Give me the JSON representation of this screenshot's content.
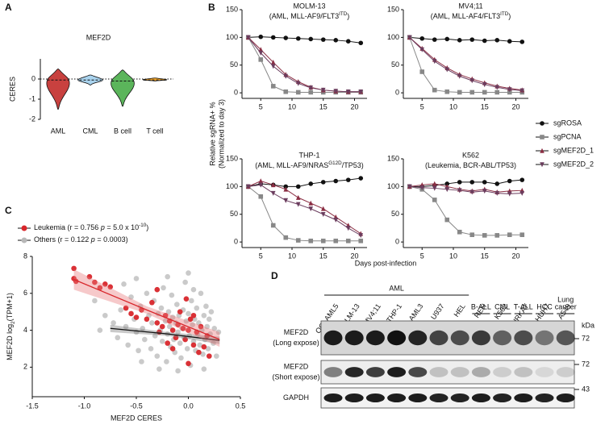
{
  "chart_data": [
    {
      "type": "violin",
      "panel": "A",
      "title": "MEF2D",
      "ylabel": "CERES",
      "categories": [
        "AML",
        "CML",
        "B cell",
        "T cell"
      ],
      "colors": [
        "#c8413f",
        "#a9d3ee",
        "#5bb55b",
        "#f4a62a"
      ],
      "min": [
        -1.5,
        -0.3,
        -1.35,
        -0.1
      ],
      "max": [
        0.5,
        0.2,
        0.45,
        0.05
      ],
      "median": [
        -0.05,
        -0.05,
        -0.1,
        -0.05
      ],
      "reference_line": 0,
      "ylim": [
        -2,
        1
      ],
      "yticks": [
        0,
        -1,
        -2
      ]
    },
    {
      "type": "line",
      "panel": "B",
      "title": "MOLM-13",
      "subtitle": [
        {
          "text": "(AML, MLL-AF9/FLT3"
        },
        {
          "sup": "ITD"
        },
        {
          "text": ")"
        }
      ],
      "ylabel": [
        "Relative sgRNA+ %",
        "(Normalized to day 3)"
      ],
      "xlabel": "Days post-infection",
      "x": [
        3,
        5,
        7,
        9,
        11,
        13,
        15,
        17,
        19,
        21
      ],
      "xlim": [
        2,
        22
      ],
      "xticks": [
        5,
        10,
        15,
        20
      ],
      "ylim": [
        -10,
        150
      ],
      "yticks": [
        0,
        50,
        100,
        150
      ],
      "series": [
        {
          "name": "sgROSA",
          "color": "#111111",
          "marker": "circle",
          "values": [
            100,
            101,
            100,
            99,
            98,
            97,
            96,
            95,
            93,
            90
          ]
        },
        {
          "name": "sgPCNA",
          "color": "#888888",
          "marker": "square",
          "values": [
            100,
            60,
            12,
            2,
            1,
            1,
            1,
            1,
            1,
            1
          ]
        },
        {
          "name": "sgMEF2D_1",
          "color": "#8b2e43",
          "marker": "triangle",
          "values": [
            100,
            78,
            55,
            33,
            20,
            10,
            5,
            3,
            2,
            2
          ]
        },
        {
          "name": "sgMEF2D_2",
          "color": "#6b3d5e",
          "marker": "triangle-down",
          "values": [
            100,
            72,
            48,
            30,
            17,
            9,
            5,
            3,
            2,
            2
          ]
        }
      ]
    },
    {
      "type": "line",
      "title": "MV4;11",
      "subtitle": [
        {
          "text": "(AML, MLL-AF4/FLT3"
        },
        {
          "sup": "ITD"
        },
        {
          "text": ")"
        }
      ],
      "x": [
        3,
        5,
        7,
        9,
        11,
        13,
        15,
        17,
        19,
        21
      ],
      "xlim": [
        2,
        22
      ],
      "xticks": [
        5,
        10,
        15,
        20
      ],
      "ylim": [
        -10,
        150
      ],
      "yticks": [
        0,
        50,
        100,
        150
      ],
      "series": [
        {
          "name": "sgROSA",
          "color": "#111111",
          "marker": "circle",
          "values": [
            100,
            98,
            96,
            97,
            95,
            96,
            94,
            95,
            93,
            92
          ]
        },
        {
          "name": "sgPCNA",
          "color": "#888888",
          "marker": "square",
          "values": [
            100,
            38,
            5,
            2,
            1,
            1,
            1,
            1,
            1,
            1
          ]
        },
        {
          "name": "sgMEF2D_1",
          "color": "#8b2e43",
          "marker": "triangle",
          "values": [
            100,
            80,
            60,
            45,
            33,
            25,
            18,
            12,
            8,
            5
          ]
        },
        {
          "name": "sgMEF2D_2",
          "color": "#6b3d5e",
          "marker": "triangle-down",
          "values": [
            100,
            78,
            57,
            42,
            30,
            22,
            15,
            10,
            6,
            4
          ]
        }
      ]
    },
    {
      "type": "line",
      "title": "THP-1",
      "subtitle": [
        {
          "text": "(AML, MLL-AF9/NRAS"
        },
        {
          "sup": "G12D"
        },
        {
          "text": "/TP53)"
        }
      ],
      "x": [
        3,
        5,
        7,
        9,
        11,
        13,
        15,
        17,
        19,
        21
      ],
      "xlim": [
        2,
        22
      ],
      "xticks": [
        5,
        10,
        15,
        20
      ],
      "ylim": [
        -10,
        150
      ],
      "yticks": [
        0,
        50,
        100,
        150
      ],
      "series": [
        {
          "name": "sgROSA",
          "color": "#111111",
          "marker": "circle",
          "values": [
            100,
            105,
            103,
            100,
            100,
            105,
            108,
            110,
            112,
            115
          ]
        },
        {
          "name": "sgPCNA",
          "color": "#888888",
          "marker": "square",
          "values": [
            100,
            82,
            30,
            8,
            3,
            2,
            2,
            2,
            2,
            2
          ]
        },
        {
          "name": "sgMEF2D_1",
          "color": "#8b2e43",
          "marker": "triangle",
          "values": [
            100,
            110,
            103,
            95,
            80,
            70,
            60,
            45,
            30,
            15
          ]
        },
        {
          "name": "sgMEF2D_2",
          "color": "#6b3d5e",
          "marker": "triangle-down",
          "values": [
            100,
            103,
            88,
            75,
            68,
            60,
            50,
            40,
            25,
            12
          ]
        }
      ]
    },
    {
      "type": "line",
      "title": "K562",
      "subtitle": [
        {
          "text": "(Leukemia, BCR-ABL/TP53)"
        }
      ],
      "x": [
        3,
        5,
        7,
        9,
        11,
        13,
        15,
        17,
        19,
        21
      ],
      "xlim": [
        2,
        22
      ],
      "xticks": [
        5,
        10,
        15,
        20
      ],
      "ylim": [
        -10,
        150
      ],
      "yticks": [
        0,
        50,
        100,
        150
      ],
      "series": [
        {
          "name": "sgROSA",
          "color": "#111111",
          "marker": "circle",
          "values": [
            100,
            100,
            102,
            105,
            108,
            108,
            108,
            105,
            110,
            112
          ]
        },
        {
          "name": "sgPCNA",
          "color": "#888888",
          "marker": "square",
          "values": [
            100,
            95,
            76,
            40,
            18,
            13,
            12,
            12,
            13,
            13
          ]
        },
        {
          "name": "sgMEF2D_1",
          "color": "#8b2e43",
          "marker": "triangle",
          "values": [
            100,
            103,
            105,
            100,
            95,
            92,
            95,
            90,
            92,
            93
          ]
        },
        {
          "name": "sgMEF2D_2",
          "color": "#6b3d5e",
          "marker": "triangle-down",
          "values": [
            100,
            98,
            97,
            95,
            93,
            90,
            92,
            88,
            87,
            88
          ]
        }
      ]
    },
    {
      "type": "scatter",
      "panel": "C",
      "xlabel": "MEF2D CERES",
      "ylabel": [
        {
          "text": "MEF2D log"
        },
        {
          "sub": "2"
        },
        {
          "text": "(TPM+1)"
        }
      ],
      "xlim": [
        -1.5,
        0.5
      ],
      "xticks": [
        -1.5,
        {
          "value": -1,
          "label": "-1.0"
        },
        -0.5,
        {
          "value": 0,
          "label": "0.0"
        },
        0.5
      ],
      "ylim": [
        0.4,
        8
      ],
      "yticks": [
        2,
        4,
        6,
        8
      ],
      "series": [
        {
          "name": [
            {
              "text": "Leukemia (r = 0.756 "
            },
            {
              "italic": "p"
            },
            {
              "text": " = 5.0 x 10"
            },
            {
              "sup": "-10"
            },
            {
              "text": ")"
            }
          ],
          "color": "#d8262b",
          "x": [
            -1.1,
            -1.1,
            -1.08,
            -0.95,
            -0.9,
            -0.85,
            -0.8,
            -0.75,
            -0.6,
            -0.55,
            -0.5,
            -0.45,
            -0.4,
            -0.35,
            -0.3,
            -0.28,
            -0.25,
            -0.22,
            -0.2,
            -0.18,
            -0.15,
            -0.12,
            -0.1,
            -0.08,
            -0.05,
            -0.03,
            0.0,
            0.02,
            0.05,
            0.08,
            0.1,
            0.12,
            0.15,
            0.18,
            0.2,
            -0.02,
            0.0,
            -0.3,
            -0.15,
            0.05
          ],
          "y": [
            7.35,
            6.8,
            6.65,
            6.9,
            6.6,
            6.3,
            6.5,
            6.35,
            5.2,
            4.9,
            4.7,
            5.1,
            4.6,
            5.5,
            4.4,
            3.9,
            4.2,
            4.8,
            3.3,
            4.5,
            4.0,
            3.6,
            4.3,
            5.0,
            4.1,
            3.5,
            4.0,
            4.6,
            3.2,
            3.9,
            2.8,
            4.2,
            3.1,
            3.7,
            2.6,
            5.7,
            2.2,
            6.2,
            3.0,
            4.8
          ],
          "fit": {
            "x": [
              -1.1,
              -0.4,
              0.3
            ],
            "y": [
              6.75,
              5.1,
              3.5
            ],
            "ci_lower": [
              6.2,
              4.9,
              3.1
            ],
            "ci_upper": [
              7.3,
              5.3,
              3.9
            ]
          }
        },
        {
          "name": [
            {
              "text": "Others (r = 0.122 "
            },
            {
              "italic": "p"
            },
            {
              "text": " = 0.0003)"
            }
          ],
          "color": "#b8b8b8",
          "x": [
            -0.72,
            -0.68,
            -0.65,
            -0.6,
            -0.58,
            -0.55,
            -0.52,
            -0.5,
            -0.48,
            -0.46,
            -0.44,
            -0.42,
            -0.4,
            -0.38,
            -0.36,
            -0.35,
            -0.33,
            -0.32,
            -0.3,
            -0.29,
            -0.27,
            -0.26,
            -0.25,
            -0.24,
            -0.22,
            -0.21,
            -0.2,
            -0.19,
            -0.18,
            -0.17,
            -0.16,
            -0.15,
            -0.14,
            -0.13,
            -0.12,
            -0.11,
            -0.1,
            -0.09,
            -0.08,
            -0.07,
            -0.06,
            -0.05,
            -0.04,
            -0.03,
            -0.02,
            -0.01,
            0.0,
            0.01,
            0.02,
            0.03,
            0.04,
            0.05,
            0.06,
            0.07,
            0.08,
            0.09,
            0.1,
            0.11,
            0.12,
            0.13,
            0.14,
            0.15,
            0.16,
            0.17,
            0.18,
            0.19,
            0.2,
            0.21,
            0.22,
            0.24,
            0.25,
            0.27,
            0.29,
            -0.9,
            -0.85,
            -0.8,
            -0.62,
            -0.5,
            -0.28,
            -0.1,
            0.05,
            -0.2,
            0.15,
            -0.45,
            0.0
          ],
          "y": [
            4.4,
            3.6,
            5.1,
            4.2,
            3.2,
            5.8,
            4.6,
            3.9,
            2.9,
            5.3,
            4.1,
            3.5,
            6.0,
            4.8,
            3.0,
            4.4,
            5.6,
            3.7,
            2.6,
            4.9,
            4.0,
            5.2,
            3.4,
            6.3,
            4.5,
            2.3,
            3.8,
            5.0,
            4.2,
            3.1,
            5.9,
            4.7,
            3.5,
            2.8,
            4.4,
            5.4,
            3.9,
            4.8,
            3.3,
            2.5,
            4.1,
            5.1,
            3.6,
            6.6,
            4.5,
            3.0,
            4.9,
            3.7,
            2.1,
            5.6,
            4.3,
            3.4,
            4.6,
            2.9,
            5.2,
            3.8,
            4.4,
            3.2,
            6.0,
            4.0,
            2.7,
            4.8,
            3.5,
            5.3,
            4.2,
            3.0,
            4.6,
            3.8,
            5.0,
            3.3,
            4.1,
            2.6,
            3.9,
            5.6,
            4.0,
            4.8,
            6.5,
            6.8,
            1.9,
            1.8,
            6.2,
            6.9,
            1.9,
            2.3,
            7.1
          ],
          "fit": {
            "x": [
              -0.75,
              -0.2,
              0.3
            ],
            "y": [
              4.1,
              3.8,
              3.45
            ],
            "ci_lower": [
              3.9,
              3.7,
              3.25
            ],
            "ci_upper": [
              4.3,
              3.9,
              3.65
            ]
          }
        }
      ]
    }
  ],
  "blot": {
    "panel": "D",
    "groups": [
      [
        "AML"
      ],
      [
        "B-ALL"
      ],
      [
        "CML"
      ],
      [
        "T-ALL"
      ],
      [
        "HCC"
      ],
      [
        "Lung",
        "cancer"
      ]
    ],
    "lanes": [
      "OCI-AML5",
      "MOLM-13",
      "MV4;11",
      "THP-1",
      "OCI-AML3",
      "U937",
      "HEL",
      "REH",
      "K562",
      "JURKAT",
      "HUH7",
      "A549"
    ],
    "lane_colors": [
      "#d42a2a",
      "#8b2035",
      "#8b2035",
      "#d42a2a",
      "#c0303a",
      "#111111",
      "#111111",
      "#111111",
      "#111111",
      "#111111",
      "#111111",
      "#111111"
    ],
    "rows": [
      {
        "label": [
          "MEF2D",
          "(Long expose)"
        ],
        "intensities": [
          0.95,
          0.95,
          0.95,
          1.0,
          0.9,
          0.75,
          0.7,
          0.8,
          0.6,
          0.7,
          0.5,
          0.65
        ]
      },
      {
        "label": [
          "MEF2D",
          "(Short expose)"
        ],
        "intensities": [
          0.5,
          0.9,
          0.8,
          0.95,
          0.75,
          0.2,
          0.2,
          0.3,
          0.15,
          0.2,
          0.1,
          0.15
        ]
      },
      {
        "label": [
          "GAPDH"
        ],
        "intensities": [
          0.95,
          0.95,
          0.95,
          0.95,
          0.95,
          0.92,
          0.92,
          0.95,
          0.92,
          0.95,
          0.92,
          0.95
        ]
      }
    ],
    "unit": "kDa",
    "markers": [
      72,
      72,
      43
    ]
  }
}
